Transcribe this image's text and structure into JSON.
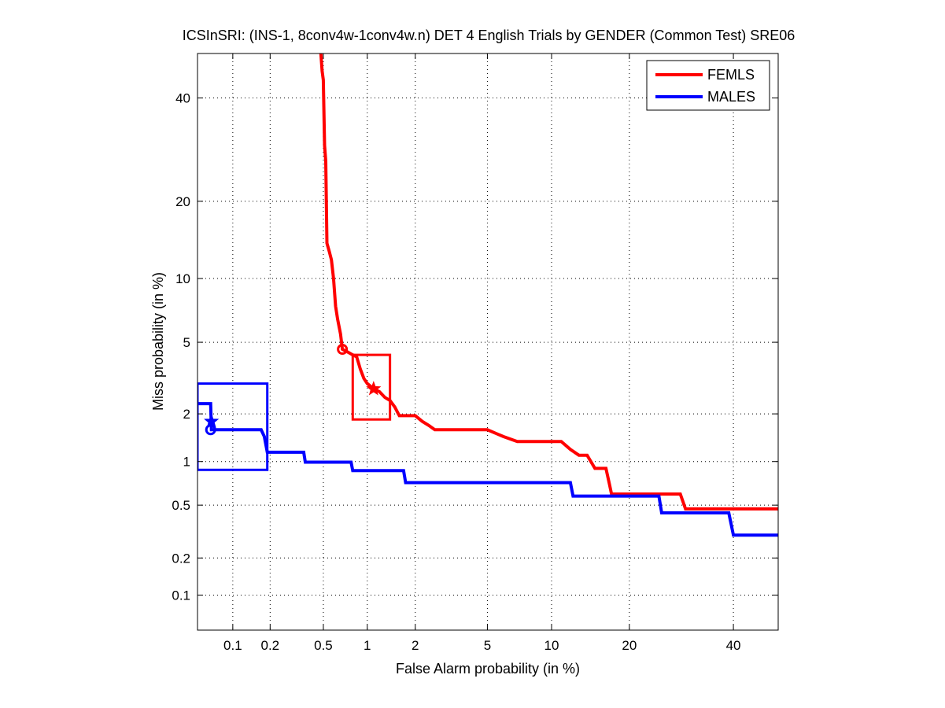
{
  "chart_data": {
    "type": "line",
    "title": "ICSInSRI: (INS-1, 8conv4w-1conv4w.n) DET 4 English Trials by GENDER (Common Test) SRE06",
    "xlabel": "False Alarm probability (in %)",
    "ylabel": "Miss probability (in %)",
    "xscale": "probit",
    "yscale": "probit",
    "xlim": [
      0.05,
      50
    ],
    "ylim": [
      0.05,
      50
    ],
    "xticks": [
      0.1,
      0.2,
      0.5,
      1,
      2,
      5,
      10,
      20,
      40
    ],
    "xtick_labels": [
      "0.1",
      "0.2",
      "0.5",
      "1",
      "2",
      "5",
      "10",
      "20",
      "40"
    ],
    "yticks": [
      0.1,
      0.2,
      0.5,
      1,
      2,
      5,
      10,
      20,
      40
    ],
    "ytick_labels": [
      "0.1",
      "0.2",
      "0.5",
      "1",
      "2",
      "5",
      "10",
      "20",
      "40"
    ],
    "grid": true,
    "legend_position": "top-right",
    "series": [
      {
        "name": "FEMLS",
        "color": "#ff0000",
        "points": [
          [
            0.48,
            50
          ],
          [
            0.49,
            46
          ],
          [
            0.5,
            44
          ],
          [
            0.51,
            30
          ],
          [
            0.52,
            27
          ],
          [
            0.53,
            14
          ],
          [
            0.55,
            13
          ],
          [
            0.57,
            12
          ],
          [
            0.59,
            10
          ],
          [
            0.61,
            7.5
          ],
          [
            0.63,
            6.5
          ],
          [
            0.66,
            5.5
          ],
          [
            0.68,
            4.6
          ],
          [
            0.72,
            4.5
          ],
          [
            0.8,
            4.3
          ],
          [
            0.85,
            4.2
          ],
          [
            0.9,
            3.6
          ],
          [
            0.95,
            3.2
          ],
          [
            1.0,
            3.0
          ],
          [
            1.05,
            2.9
          ],
          [
            1.1,
            2.8
          ],
          [
            1.2,
            2.7
          ],
          [
            1.3,
            2.5
          ],
          [
            1.4,
            2.4
          ],
          [
            1.5,
            2.2
          ],
          [
            1.6,
            1.95
          ],
          [
            2.0,
            1.95
          ],
          [
            2.2,
            1.8
          ],
          [
            2.4,
            1.7
          ],
          [
            2.6,
            1.6
          ],
          [
            5.0,
            1.6
          ],
          [
            6.0,
            1.45
          ],
          [
            7.0,
            1.35
          ],
          [
            11.0,
            1.35
          ],
          [
            12.0,
            1.2
          ],
          [
            13.0,
            1.1
          ],
          [
            14.0,
            1.1
          ],
          [
            15.0,
            0.9
          ],
          [
            16.5,
            0.9
          ],
          [
            17.0,
            0.7
          ],
          [
            17.3,
            0.6
          ],
          [
            29.0,
            0.6
          ],
          [
            30.0,
            0.47
          ],
          [
            50.0,
            0.47
          ]
        ],
        "confidence_box": {
          "fa": [
            0.8,
            1.4
          ],
          "miss": [
            1.85,
            4.3
          ]
        },
        "markers": [
          {
            "shape": "circle",
            "fa": 0.68,
            "miss": 4.6
          },
          {
            "shape": "star",
            "fa": 1.1,
            "miss": 2.8
          }
        ]
      },
      {
        "name": "MALES",
        "color": "#0000ff",
        "points": [
          [
            0.05,
            2.3
          ],
          [
            0.065,
            2.3
          ],
          [
            0.066,
            1.6
          ],
          [
            0.17,
            1.6
          ],
          [
            0.18,
            1.45
          ],
          [
            0.19,
            1.15
          ],
          [
            0.36,
            1.15
          ],
          [
            0.37,
            0.99
          ],
          [
            0.78,
            0.99
          ],
          [
            0.8,
            0.87
          ],
          [
            1.7,
            0.87
          ],
          [
            1.75,
            0.72
          ],
          [
            12.0,
            0.72
          ],
          [
            12.3,
            0.58
          ],
          [
            25.0,
            0.58
          ],
          [
            25.5,
            0.44
          ],
          [
            39.0,
            0.44
          ],
          [
            40.0,
            0.3
          ],
          [
            50.0,
            0.3
          ]
        ],
        "confidence_box": {
          "fa": [
            0.05,
            0.19
          ],
          "miss": [
            0.88,
            3.0
          ]
        },
        "markers": [
          {
            "shape": "circle",
            "fa": 0.065,
            "miss": 1.6
          },
          {
            "shape": "star",
            "fa": 0.066,
            "miss": 1.8
          }
        ]
      }
    ]
  }
}
